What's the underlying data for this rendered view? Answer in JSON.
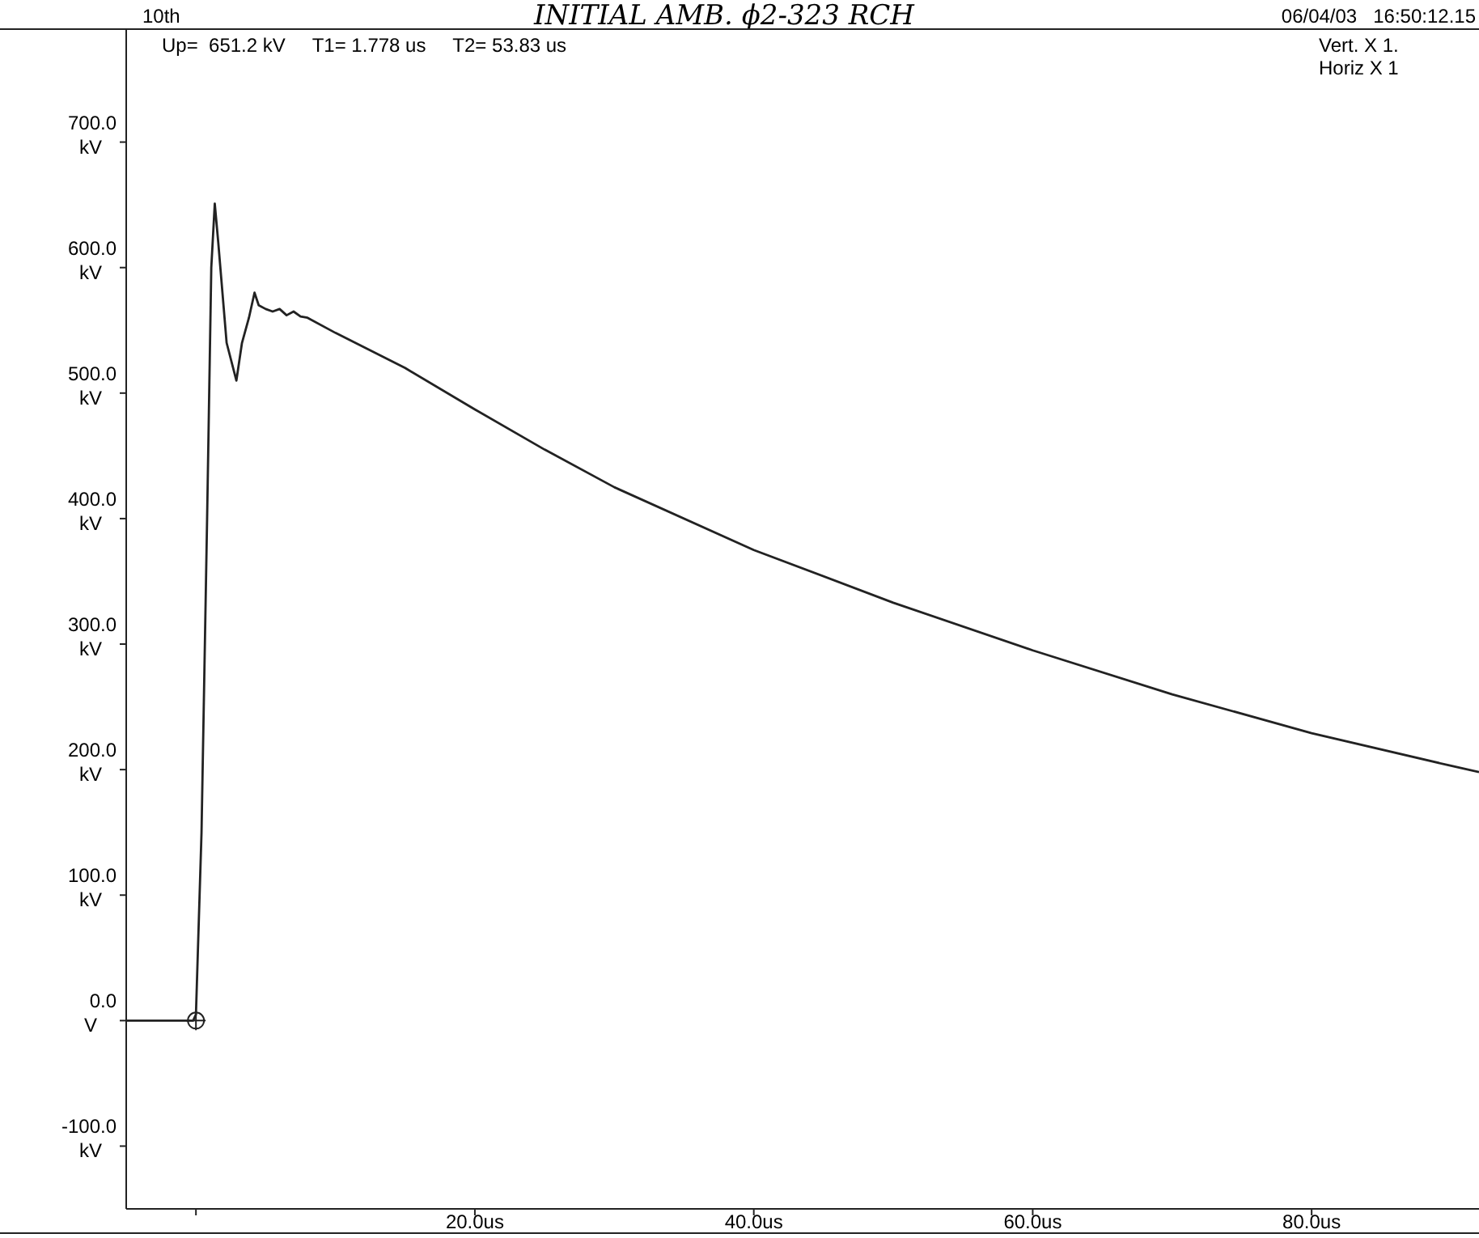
{
  "chart_data": {
    "type": "line",
    "title": "INITIAL AMB. ϕ2-323 RCH",
    "annotations": [
      "10th",
      "06/04/03   16:50:12.15",
      "Up=  651.2 kV     T1= 1.778 us     T2= 53.83 us",
      "Vert. X 1.",
      "Horiz X 1"
    ],
    "series": [
      {
        "color": "#222222",
        "x": [
          -5,
          -0.2,
          0,
          0.4,
          0.8,
          1.1,
          1.35,
          1.6,
          2.2,
          2.9,
          3.3,
          3.8,
          4.2,
          4.5,
          5,
          5.5,
          6,
          6.5,
          7,
          7.5,
          8,
          10,
          15,
          20,
          25,
          30,
          40,
          50,
          60,
          70,
          80,
          90,
          92
        ],
        "values": [
          0,
          0,
          5,
          150,
          400,
          600,
          651,
          620,
          540,
          510,
          540,
          560,
          580,
          570,
          567,
          565,
          567,
          562,
          565,
          561,
          560,
          548,
          520,
          487,
          455,
          425,
          375,
          333,
          295,
          260,
          229,
          203,
          198
        ]
      },
      {
        "type": "scatter",
        "color": "#222222",
        "marker": "circle",
        "x": [
          0
        ],
        "values": [
          0
        ]
      }
    ],
    "xlim": [
      -5,
      92
    ],
    "xticks": [
      {
        "value": 0,
        "label": null
      },
      {
        "value": 20,
        "label": "20.0us"
      },
      {
        "value": 40,
        "label": "40.0us"
      },
      {
        "value": 60,
        "label": "60.0us"
      },
      {
        "value": 80,
        "label": "80.0us"
      }
    ],
    "ylim": [
      -150,
      790
    ],
    "yticks": [
      {
        "value": -100,
        "label": "-100.0 kV"
      },
      {
        "value": 0,
        "label": "0.0 V"
      },
      {
        "value": 100,
        "label": "100.0 kV"
      },
      {
        "value": 200,
        "label": "200.0 kV"
      },
      {
        "value": 300,
        "label": "300.0 kV"
      },
      {
        "value": 400,
        "label": "400.0 kV"
      },
      {
        "value": 500,
        "label": "500.0 kV"
      },
      {
        "value": 600,
        "label": "600.0 kV"
      },
      {
        "value": 700,
        "label": "700.0 kV"
      }
    ]
  }
}
